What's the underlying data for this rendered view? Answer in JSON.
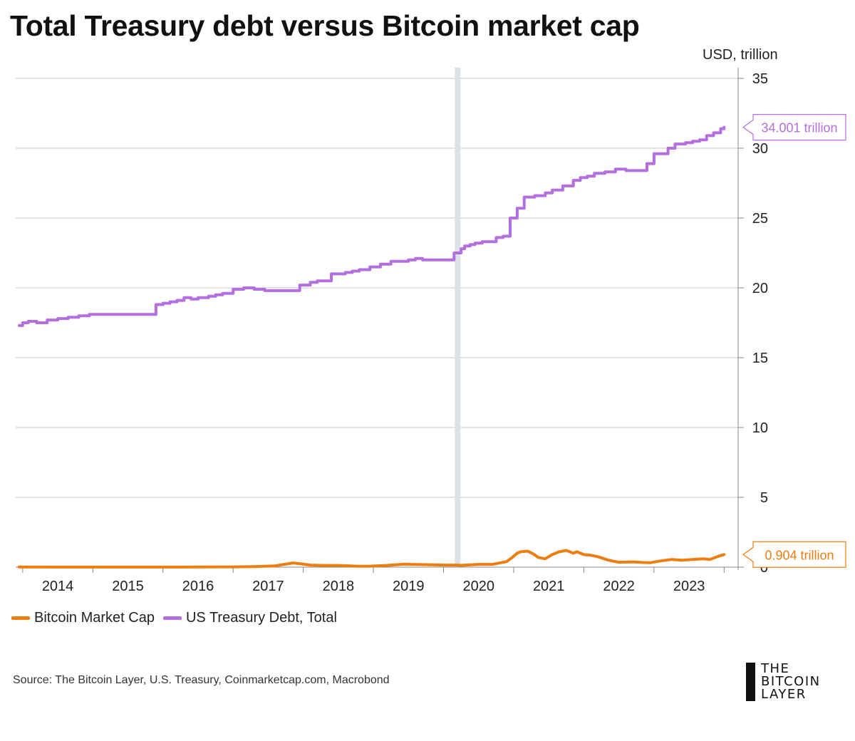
{
  "title": "Total Treasury debt versus Bitcoin market cap",
  "unit_label": "USD, trillion",
  "source": "Source: The Bitcoin Layer, U.S. Treasury, Coinmarketcap.com, Macrobond",
  "logo": {
    "line1": "THE",
    "line2": "BITCOIN",
    "line3": "LAYER"
  },
  "legend": [
    {
      "label": "Bitcoin Market Cap",
      "color": "#ee7d10"
    },
    {
      "label": "US Treasury Debt, Total",
      "color": "#b36ee0"
    }
  ],
  "chart_data": {
    "type": "line",
    "step": true,
    "x_ticks": [
      "2014",
      "2015",
      "2016",
      "2017",
      "2018",
      "2019",
      "2020",
      "2021",
      "2022",
      "2023"
    ],
    "y_ticks": [
      0,
      5,
      10,
      15,
      20,
      25,
      30,
      35
    ],
    "ylim": [
      0,
      35
    ],
    "xlim": [
      2013.9,
      2024.2
    ],
    "y_axis_position": "right",
    "grid": true,
    "legend_position": "bottom-left",
    "highlight_band": {
      "x": 2020.2,
      "color": "#dde1e7"
    },
    "series": [
      {
        "name": "US Treasury Debt, Total",
        "color": "#b36ee0",
        "end_label": "34.001 trillion",
        "x": [
          2013.95,
          2014.0,
          2014.08,
          2014.2,
          2014.35,
          2014.5,
          2014.65,
          2014.8,
          2014.95,
          2015.1,
          2015.2,
          2015.35,
          2015.5,
          2015.65,
          2015.8,
          2015.9,
          2016.0,
          2016.1,
          2016.2,
          2016.3,
          2016.4,
          2016.5,
          2016.65,
          2016.75,
          2016.85,
          2017.0,
          2017.15,
          2017.3,
          2017.45,
          2017.6,
          2017.7,
          2017.8,
          2017.95,
          2018.1,
          2018.2,
          2018.3,
          2018.4,
          2018.5,
          2018.6,
          2018.7,
          2018.8,
          2018.95,
          2019.1,
          2019.25,
          2019.5,
          2019.6,
          2019.7,
          2019.85,
          2020.0,
          2020.15,
          2020.25,
          2020.3,
          2020.38,
          2020.45,
          2020.55,
          2020.65,
          2020.75,
          2020.85,
          2020.95,
          2021.05,
          2021.15,
          2021.3,
          2021.45,
          2021.55,
          2021.7,
          2021.85,
          2021.95,
          2022.05,
          2022.15,
          2022.3,
          2022.45,
          2022.6,
          2022.75,
          2022.9,
          2023.0,
          2023.2,
          2023.3,
          2023.45,
          2023.55,
          2023.65,
          2023.75,
          2023.85,
          2023.95,
          2024.0
        ],
        "y": [
          17.3,
          17.5,
          17.6,
          17.5,
          17.7,
          17.8,
          17.9,
          18.0,
          18.1,
          18.1,
          18.1,
          18.1,
          18.1,
          18.1,
          18.1,
          18.8,
          18.9,
          19.0,
          19.1,
          19.3,
          19.2,
          19.3,
          19.4,
          19.5,
          19.6,
          19.9,
          20.0,
          19.9,
          19.8,
          19.8,
          19.8,
          19.8,
          20.2,
          20.4,
          20.5,
          20.5,
          21.0,
          21.0,
          21.1,
          21.2,
          21.3,
          21.5,
          21.7,
          21.9,
          22.0,
          22.1,
          22.0,
          22.0,
          22.0,
          22.5,
          22.8,
          23.0,
          23.1,
          23.2,
          23.3,
          23.3,
          23.6,
          23.7,
          25.0,
          25.7,
          26.5,
          26.6,
          26.8,
          27.0,
          27.3,
          27.7,
          27.9,
          28.0,
          28.2,
          28.3,
          28.5,
          28.4,
          28.4,
          28.9,
          29.6,
          30.0,
          30.3,
          30.4,
          30.5,
          30.6,
          30.9,
          31.1,
          31.4,
          31.5
        ],
        "x2": [
          2024.0
        ],
        "y2": [
          34.0
        ]
      },
      {
        "name": "Bitcoin Market Cap",
        "color": "#ee7d10",
        "end_label": "0.904 trillion",
        "x": [
          2013.95,
          2014.5,
          2015.0,
          2015.5,
          2016.0,
          2016.5,
          2017.0,
          2017.3,
          2017.6,
          2017.85,
          2017.95,
          2018.1,
          2018.3,
          2018.5,
          2018.8,
          2018.95,
          2019.2,
          2019.45,
          2019.55,
          2019.75,
          2020.0,
          2020.2,
          2020.25,
          2020.5,
          2020.7,
          2020.9,
          2020.98,
          2021.05,
          2021.1,
          2021.2,
          2021.28,
          2021.35,
          2021.4,
          2021.45,
          2021.55,
          2021.65,
          2021.75,
          2021.85,
          2021.9,
          2022.0,
          2022.1,
          2022.2,
          2022.35,
          2022.45,
          2022.5,
          2022.7,
          2022.85,
          2022.95,
          2023.1,
          2023.25,
          2023.4,
          2023.55,
          2023.7,
          2023.8,
          2023.9,
          2024.0
        ],
        "y": [
          0.01,
          0.007,
          0.004,
          0.004,
          0.007,
          0.01,
          0.02,
          0.04,
          0.09,
          0.3,
          0.25,
          0.15,
          0.12,
          0.12,
          0.06,
          0.07,
          0.13,
          0.22,
          0.2,
          0.18,
          0.15,
          0.15,
          0.13,
          0.2,
          0.2,
          0.4,
          0.7,
          1.0,
          1.1,
          1.15,
          0.95,
          0.7,
          0.65,
          0.6,
          0.9,
          1.1,
          1.2,
          1.0,
          1.1,
          0.9,
          0.85,
          0.75,
          0.5,
          0.4,
          0.35,
          0.38,
          0.33,
          0.32,
          0.45,
          0.55,
          0.5,
          0.55,
          0.6,
          0.55,
          0.75,
          0.904
        ]
      }
    ]
  }
}
